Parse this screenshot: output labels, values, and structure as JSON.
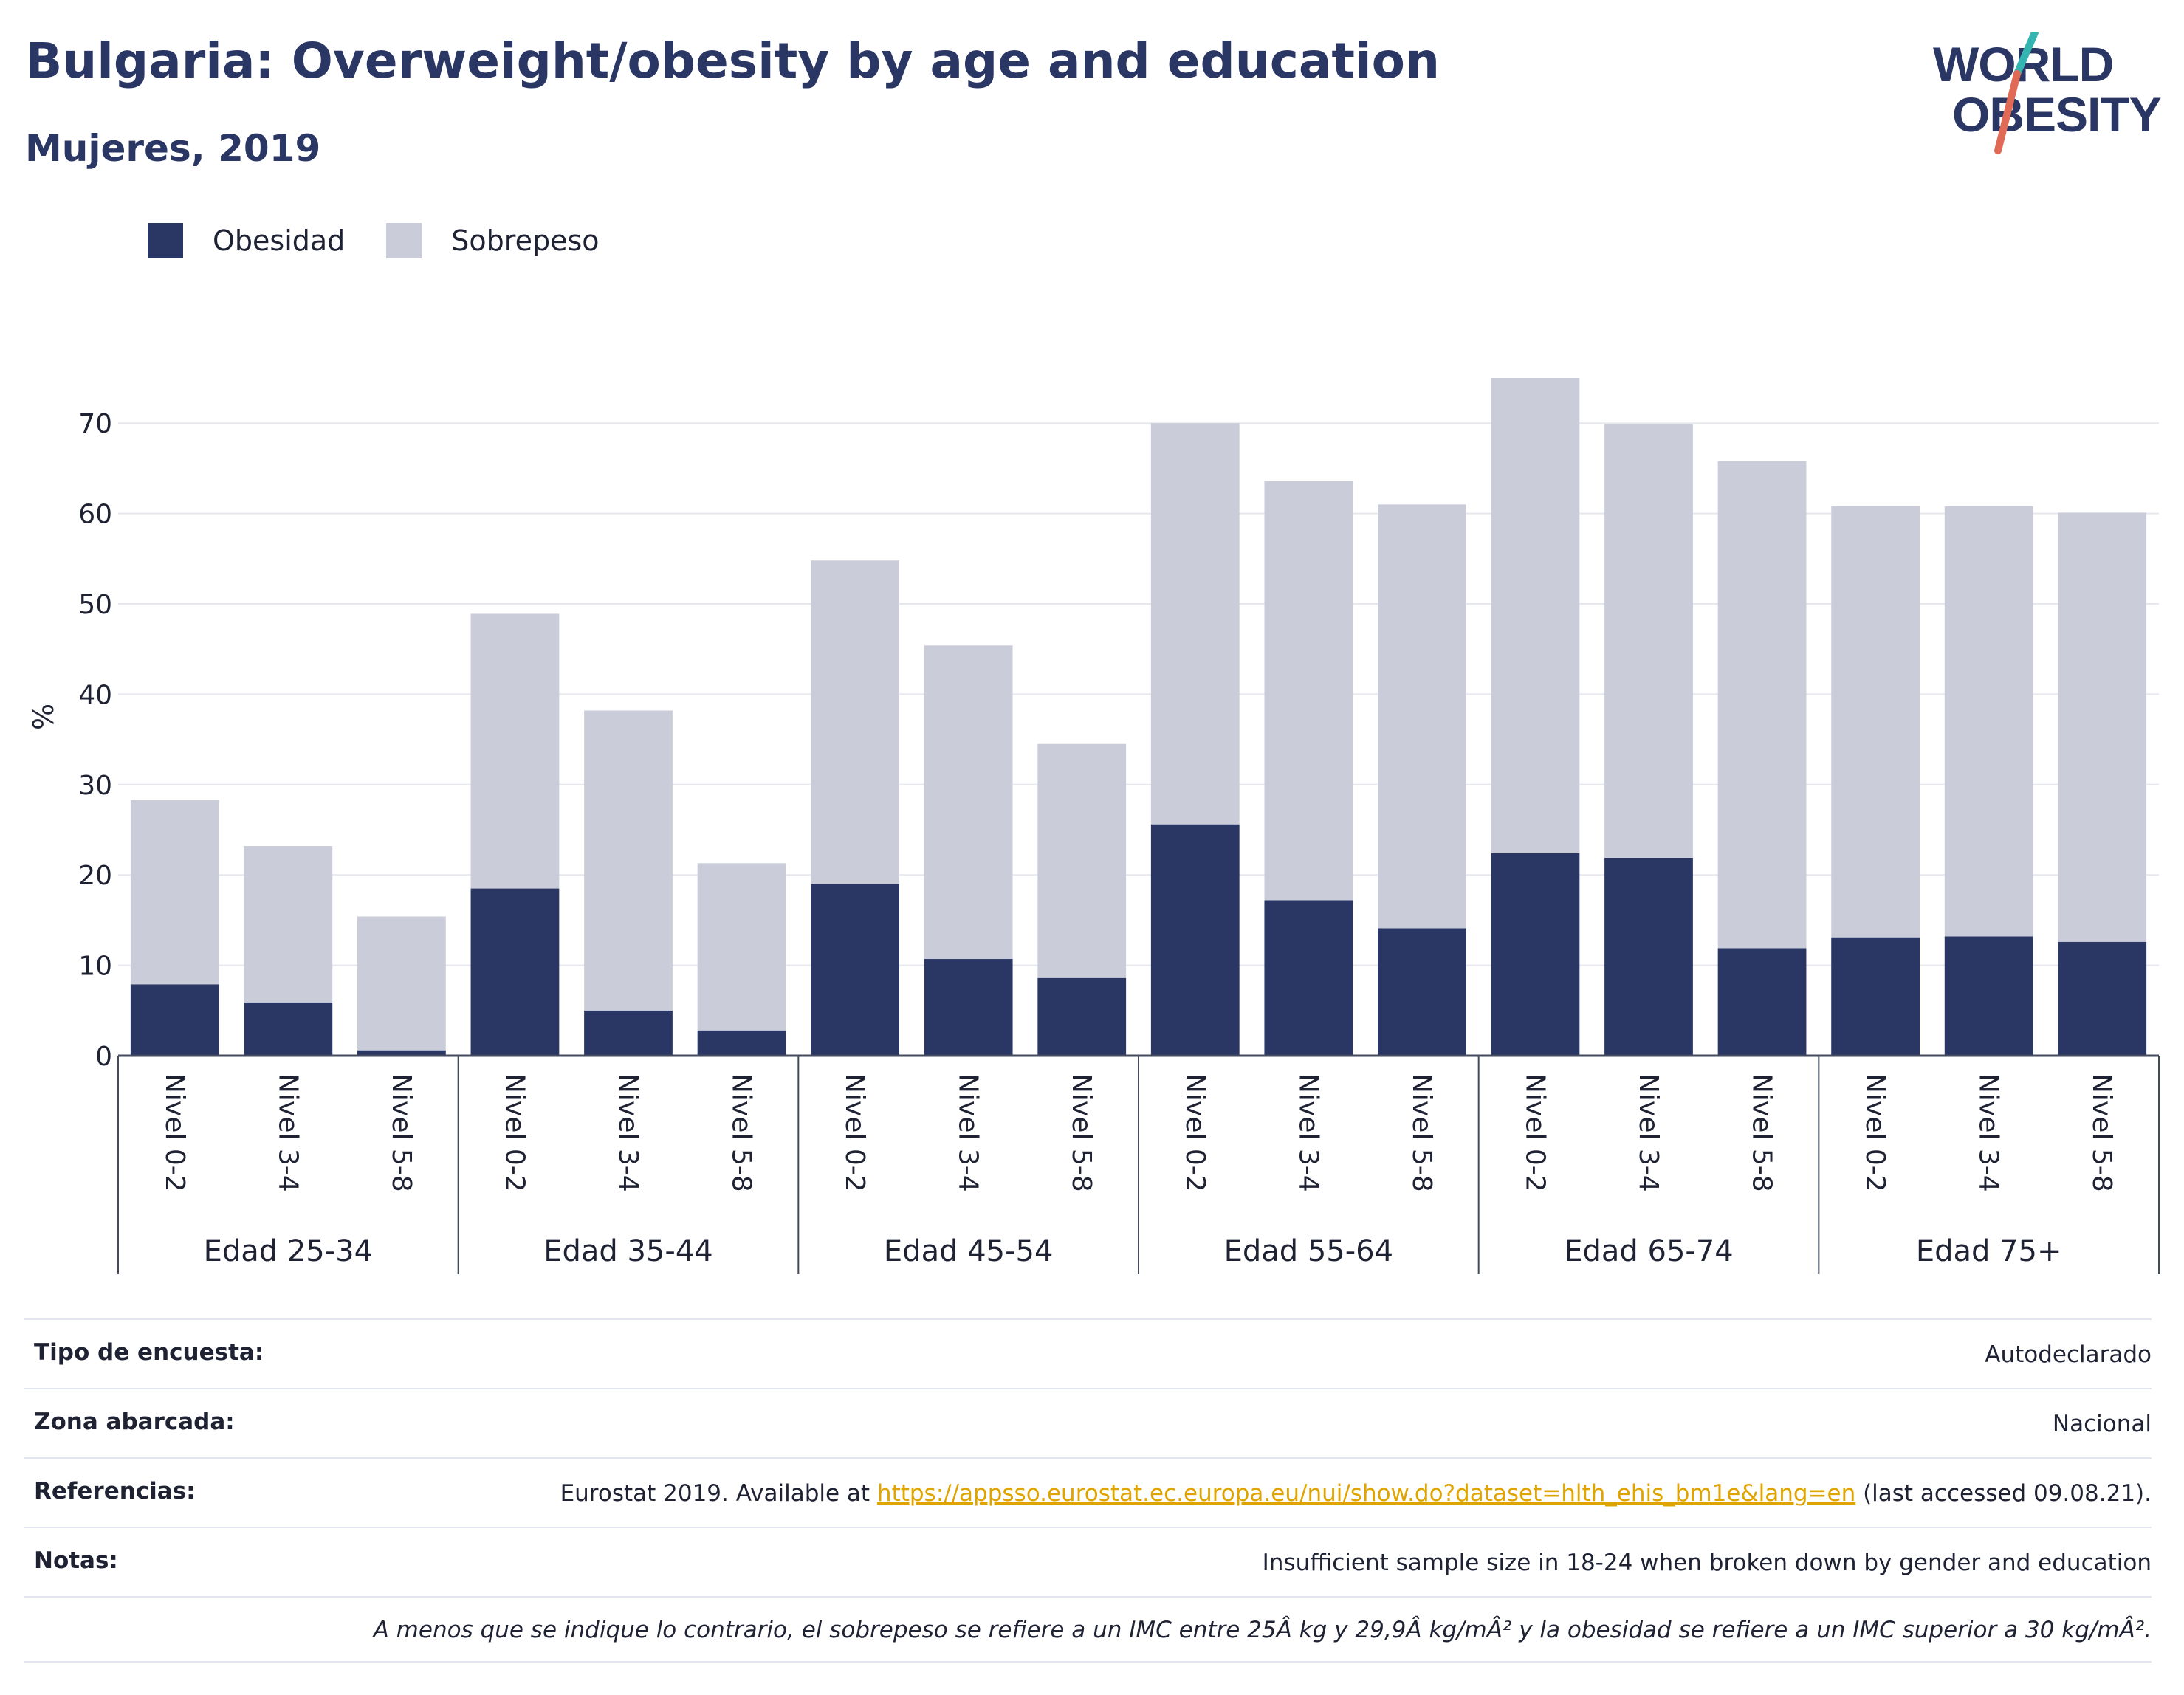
{
  "header": {
    "title": "Bulgaria: Overweight/obesity by age and education",
    "subtitle": "Mujeres, 2019"
  },
  "logo": {
    "line1": "WORLD",
    "line2": "OBESITY",
    "colors": {
      "text": "#2a3663",
      "slash_teal": "#34b5b1",
      "slash_coral": "#e06a56"
    }
  },
  "legend": [
    {
      "label": "Obesidad",
      "color": "#2a3663"
    },
    {
      "label": "Sobrepeso",
      "color": "#cacdd9"
    }
  ],
  "chart_data": {
    "type": "bar",
    "stacked": true,
    "ylabel": "%",
    "ylim": [
      0,
      75
    ],
    "yticks": [
      0,
      10,
      20,
      30,
      40,
      50,
      60,
      70
    ],
    "grid": true,
    "legend_position": "top-left",
    "groups": [
      {
        "label": "Edad 25-34",
        "categories": [
          "Nivel 0-2",
          "Nivel 3-4",
          "Nivel 5-8"
        ]
      },
      {
        "label": "Edad 35-44",
        "categories": [
          "Nivel 0-2",
          "Nivel 3-4",
          "Nivel 5-8"
        ]
      },
      {
        "label": "Edad 45-54",
        "categories": [
          "Nivel 0-2",
          "Nivel 3-4",
          "Nivel 5-8"
        ]
      },
      {
        "label": "Edad 55-64",
        "categories": [
          "Nivel 0-2",
          "Nivel 3-4",
          "Nivel 5-8"
        ]
      },
      {
        "label": "Edad 65-74",
        "categories": [
          "Nivel 0-2",
          "Nivel 3-4",
          "Nivel 5-8"
        ]
      },
      {
        "label": "Edad 75+",
        "categories": [
          "Nivel 0-2",
          "Nivel 3-4",
          "Nivel 5-8"
        ]
      }
    ],
    "series": [
      {
        "name": "Obesidad",
        "color": "#2a3663",
        "values": [
          7.9,
          5.9,
          0.6,
          18.5,
          5.0,
          2.8,
          19.0,
          10.7,
          8.6,
          25.6,
          17.2,
          14.1,
          22.4,
          21.9,
          11.9,
          13.1,
          13.2,
          12.6
        ]
      },
      {
        "name": "Sobrepeso",
        "color": "#cacdd9",
        "values": [
          20.4,
          17.3,
          14.8,
          30.4,
          33.2,
          18.5,
          35.8,
          34.7,
          25.9,
          44.4,
          46.4,
          46.9,
          52.6,
          48.0,
          53.9,
          47.7,
          47.6,
          47.5
        ]
      }
    ]
  },
  "info": {
    "rows": [
      {
        "label": "Tipo de encuesta:",
        "value": "Autodeclarado"
      },
      {
        "label": "Zona abarcada:",
        "value": "Nacional"
      },
      {
        "label": "Referencias:",
        "value_prefix": "Eurostat 2019. Available at ",
        "link": "https://appsso.eurostat.ec.europa.eu/nui/show.do?dataset=hlth_ehis_bm1e&lang=en",
        "value_suffix": " (last accessed 09.08.21)."
      },
      {
        "label": "Notas:",
        "value": "Insufficient sample size in 18-24 when broken down by gender and education"
      }
    ],
    "footnote": "A menos que se indique lo contrario, el sobrepeso se refiere a un IMC entre 25Â kg y 29,9Â kg/mÂ² y la obesidad se refiere a un IMC superior a 30 kg/mÂ²."
  }
}
